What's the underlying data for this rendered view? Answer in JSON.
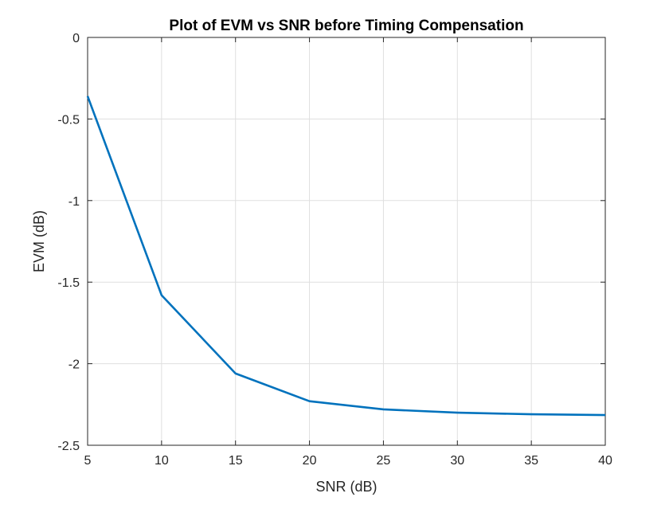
{
  "chart_data": {
    "type": "line",
    "title": "Plot of EVM vs SNR before Timing Compensation",
    "xlabel": "SNR (dB)",
    "ylabel": "EVM (dB)",
    "xlim": [
      5,
      40
    ],
    "ylim": [
      -2.5,
      0
    ],
    "grid": true,
    "x_ticks": [
      "5",
      "10",
      "15",
      "20",
      "25",
      "30",
      "35",
      "40"
    ],
    "y_ticks": [
      "0",
      "-0.5",
      "-1",
      "-1.5",
      "-2",
      "-2.5"
    ],
    "x_tick_values": [
      5,
      10,
      15,
      20,
      25,
      30,
      35,
      40
    ],
    "y_tick_values": [
      0,
      -0.5,
      -1,
      -1.5,
      -2,
      -2.5
    ],
    "line_color": "#0072BD",
    "series": [
      {
        "x": [
          5,
          10,
          15,
          20,
          25,
          30,
          35,
          40
        ],
        "values": [
          -0.36,
          -1.58,
          -2.06,
          -2.23,
          -2.28,
          -2.3,
          -2.31,
          -2.315
        ]
      }
    ]
  }
}
